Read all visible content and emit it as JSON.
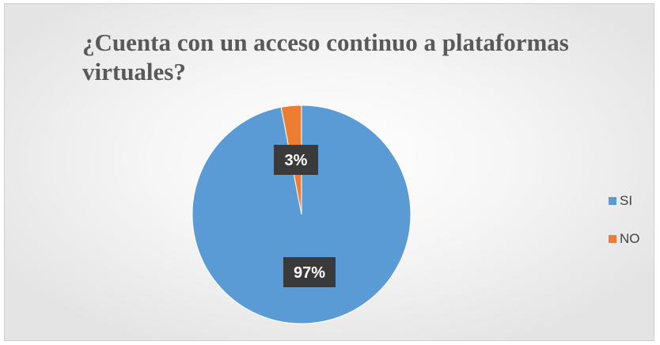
{
  "chart_data": {
    "type": "pie",
    "title": "¿Cuenta con un acceso continuo a plataformas virtuales?",
    "categories": [
      "SI",
      "NO"
    ],
    "values": [
      97,
      3
    ],
    "labels": [
      "97%",
      "3%"
    ],
    "colors": [
      "#5b9bd5",
      "#ed7d31"
    ],
    "legend_position": "right"
  }
}
